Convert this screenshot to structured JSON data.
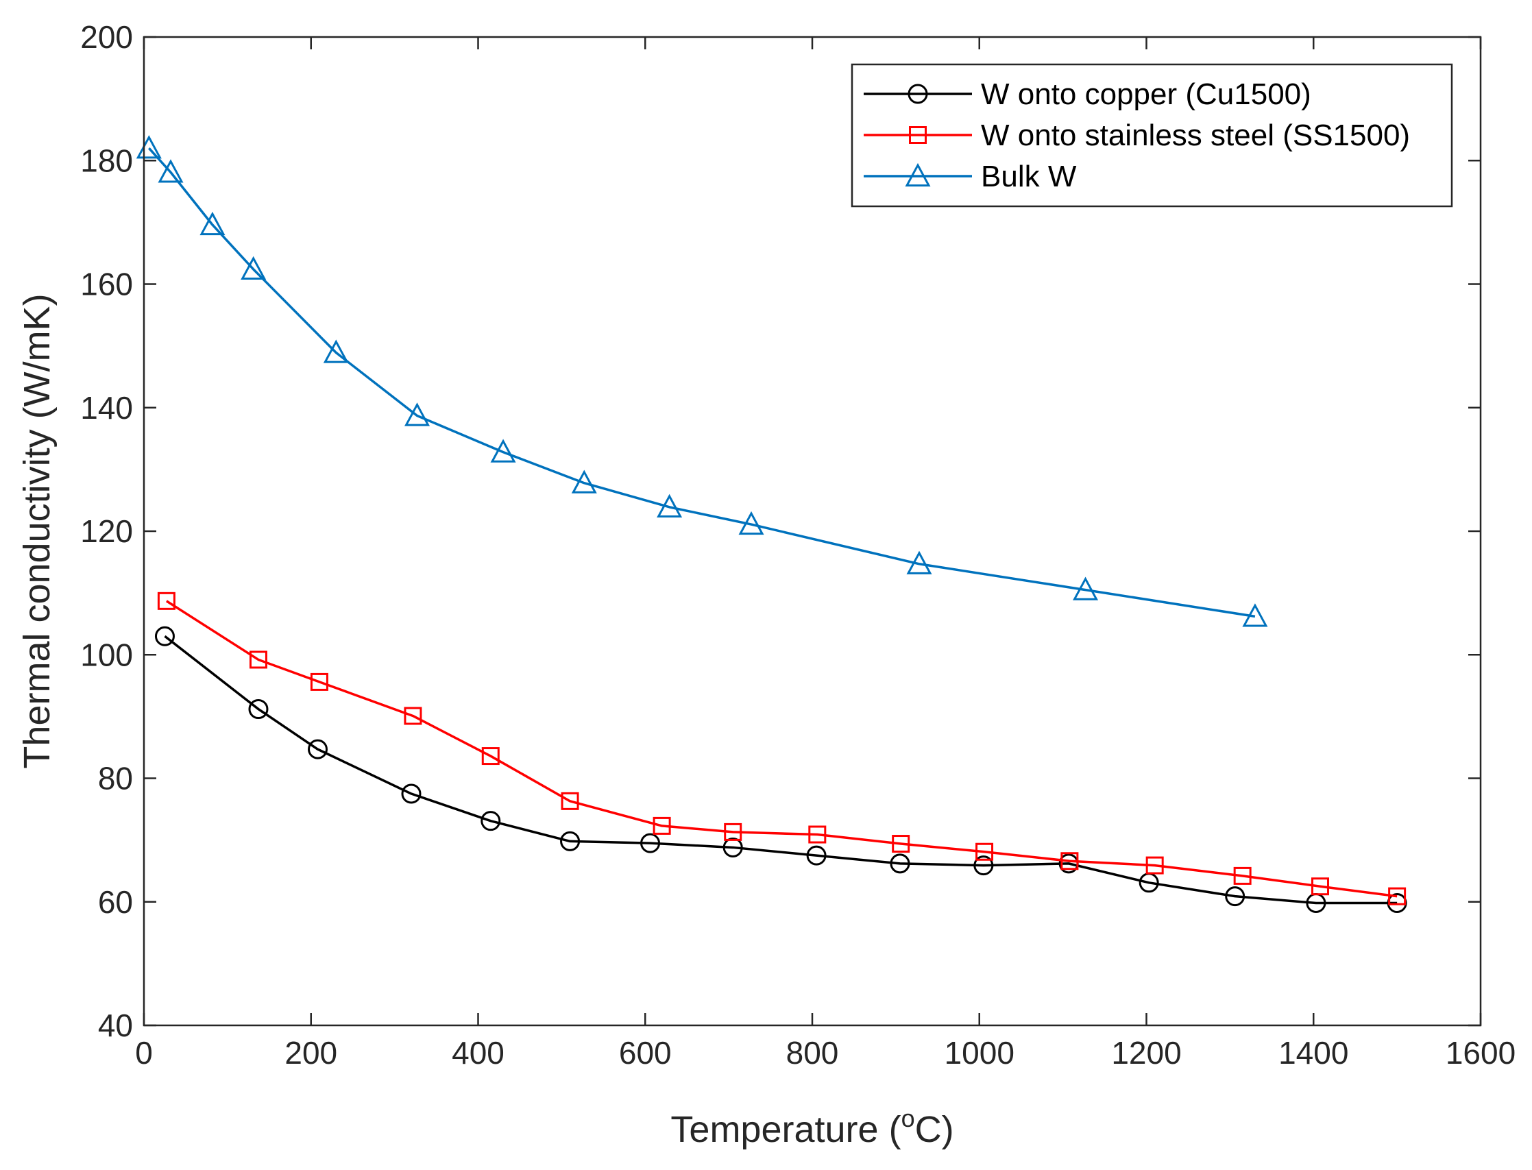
{
  "chart_data": {
    "type": "line",
    "title": "",
    "xlabel": "Temperature (",
    "xlabel_sup": "o",
    "xlabel_tail": "C)",
    "ylabel": "Thermal conductivity (W/mK)",
    "xlim": [
      0,
      1600
    ],
    "ylim": [
      40,
      200
    ],
    "xticks": [
      0,
      200,
      400,
      600,
      800,
      1000,
      1200,
      1400,
      1600
    ],
    "yticks": [
      40,
      60,
      80,
      100,
      120,
      140,
      160,
      180,
      200
    ],
    "grid": false,
    "legend_position": "top-right",
    "series": [
      {
        "name": "W onto copper (Cu1500)",
        "color": "#000000",
        "marker": "circle",
        "x": [
          25,
          137,
          208,
          320,
          415,
          510,
          606,
          705,
          805,
          905,
          1005,
          1107,
          1203,
          1306,
          1403,
          1500
        ],
        "y": [
          103,
          91.2,
          84.7,
          77.5,
          73.1,
          69.8,
          69.5,
          68.8,
          67.5,
          66.2,
          65.9,
          66.2,
          63.1,
          60.9,
          59.8,
          59.8
        ]
      },
      {
        "name": "W onto stainless steel (SS1500)",
        "color": "#ff0000",
        "marker": "square",
        "x": [
          27,
          137,
          210,
          322,
          415,
          510,
          620,
          705,
          806,
          906,
          1006,
          1108,
          1210,
          1315,
          1408,
          1500
        ],
        "y": [
          108.7,
          99.2,
          95.6,
          90.1,
          83.6,
          76.3,
          72.3,
          71.3,
          70.9,
          69.4,
          68.1,
          66.6,
          65.9,
          64.2,
          62.5,
          60.9
        ]
      },
      {
        "name": "Bulk W",
        "color": "#0072bd",
        "marker": "triangle",
        "x": [
          6,
          32,
          82,
          131,
          230,
          327,
          430,
          527,
          629,
          727,
          928,
          1127,
          1330
        ],
        "y": [
          182,
          178.1,
          169.6,
          162.4,
          148.9,
          138.7,
          132.8,
          127.8,
          123.9,
          121.1,
          114.7,
          110.5,
          106.2
        ]
      }
    ]
  }
}
